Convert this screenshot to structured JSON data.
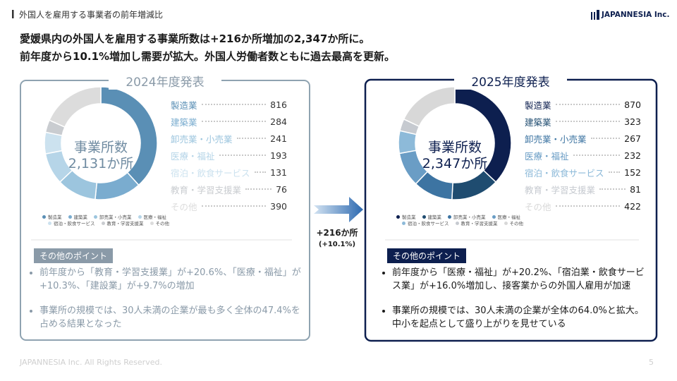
{
  "header": {
    "section_title": "外国人を雇用する事業者の前年増減比",
    "logo": "JAPANNESIA Inc."
  },
  "headline": [
    "愛媛県内の外国人を雇用する事業所数は+216か所増加の2,347か所に。",
    "前年度から10.1%増加し需要が拡大。外国人労働者数ともに過去最高を更新。"
  ],
  "chart_data": [
    {
      "type": "pie",
      "title": "2024年度発表",
      "center_label": [
        "事業所数",
        "2,131か所"
      ],
      "categories": [
        "製造業",
        "建築業",
        "卸売業・小売業",
        "医療・福祉",
        "宿泊・飲食サービス",
        "教育・学習支援業",
        "その他"
      ],
      "values": [
        816,
        284,
        241,
        193,
        131,
        76,
        390
      ],
      "colors": [
        "#5a8fb5",
        "#7aaccf",
        "#9cc5de",
        "#b6d5e8",
        "#cce2ef",
        "#c9ccd0",
        "#dcdcdc"
      ],
      "notes_title": "その他のポイント",
      "notes": [
        "前年度から「教育・学習支援業」が+20.6%、「医療・福祉」が+10.3%、「建設業」が+9.7%の増加",
        "事業所の規模では、30人未満の企業が最も多く全体の47.4%を占める結果となった"
      ]
    },
    {
      "type": "pie",
      "title": "2025年度発表",
      "center_label": [
        "事業所数",
        "2,347か所"
      ],
      "categories": [
        "製造業",
        "建築業",
        "卸売業・小売業",
        "医療・福祉",
        "宿泊・飲食サービス",
        "教育・学習支援業",
        "その他"
      ],
      "values": [
        870,
        323,
        267,
        232,
        152,
        81,
        422
      ],
      "colors": [
        "#0d1f4f",
        "#1f4c70",
        "#3d74a2",
        "#6a9dc5",
        "#8dbad9",
        "#c6cad0",
        "#d8d8d8"
      ],
      "notes_title": "その他のポイント",
      "notes": [
        "前年度から「医療・福祉」が+20.2%、「宿泊業・飲食サービス業」が+16.0%増加し、接客業からの外国人雇用が加速",
        "事業所の規模では、30人未満の企業が全体の64.0%と拡大。中小を起点として盛り上がりを見せている"
      ]
    }
  ],
  "change": {
    "label": "+216か所",
    "sub": "(+10.1%)"
  },
  "footer": {
    "copyright": "JAPANNESIA Inc. All Rights Reserved.",
    "page": 5
  }
}
